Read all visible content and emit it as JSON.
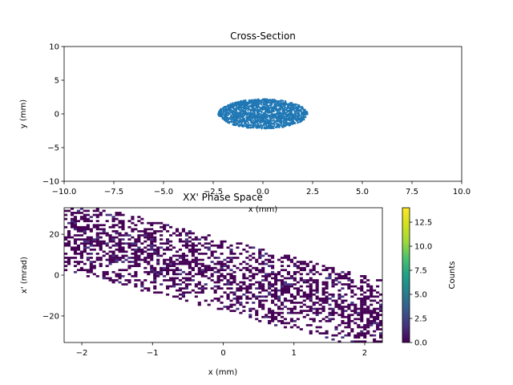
{
  "chart_data": [
    {
      "type": "scatter",
      "title": "Cross-Section",
      "xlabel": "x (mm)",
      "ylabel": "y (mm)",
      "xlim": [
        -10,
        10
      ],
      "ylim": [
        -10,
        10
      ],
      "xticks": [
        "−10.0",
        "−7.5",
        "−5.0",
        "−2.5",
        "0.0",
        "2.5",
        "5.0",
        "7.5",
        "10.0"
      ],
      "yticks": [
        "−10",
        "−5",
        "0",
        "5",
        "10"
      ],
      "marker_color": "#1f77b4",
      "grid": false,
      "distribution": {
        "shape": "uniform-ellipse",
        "center": [
          0,
          0
        ],
        "semi_axis_x": 2.25,
        "semi_axis_y": 2.2,
        "n_points": 2000
      }
    },
    {
      "type": "heatmap",
      "title": "XX' Phase Space",
      "xlabel": "x (mm)",
      "ylabel": "x' (mrad)",
      "xlim": [
        -2.25,
        2.25
      ],
      "ylim": [
        -33,
        33
      ],
      "xticks": [
        "−2",
        "−1",
        "0",
        "1",
        "2"
      ],
      "yticks": [
        "−20",
        "0",
        "20"
      ],
      "colormap": "viridis",
      "grid": false,
      "correlation": {
        "slope_mrad_per_mm": -9,
        "half_width_mrad": 17
      },
      "colorbar": {
        "label": "Counts",
        "range": [
          0,
          14
        ],
        "ticks": [
          "0.0",
          "2.5",
          "5.0",
          "7.5",
          "10.0",
          "12.5"
        ]
      }
    }
  ]
}
